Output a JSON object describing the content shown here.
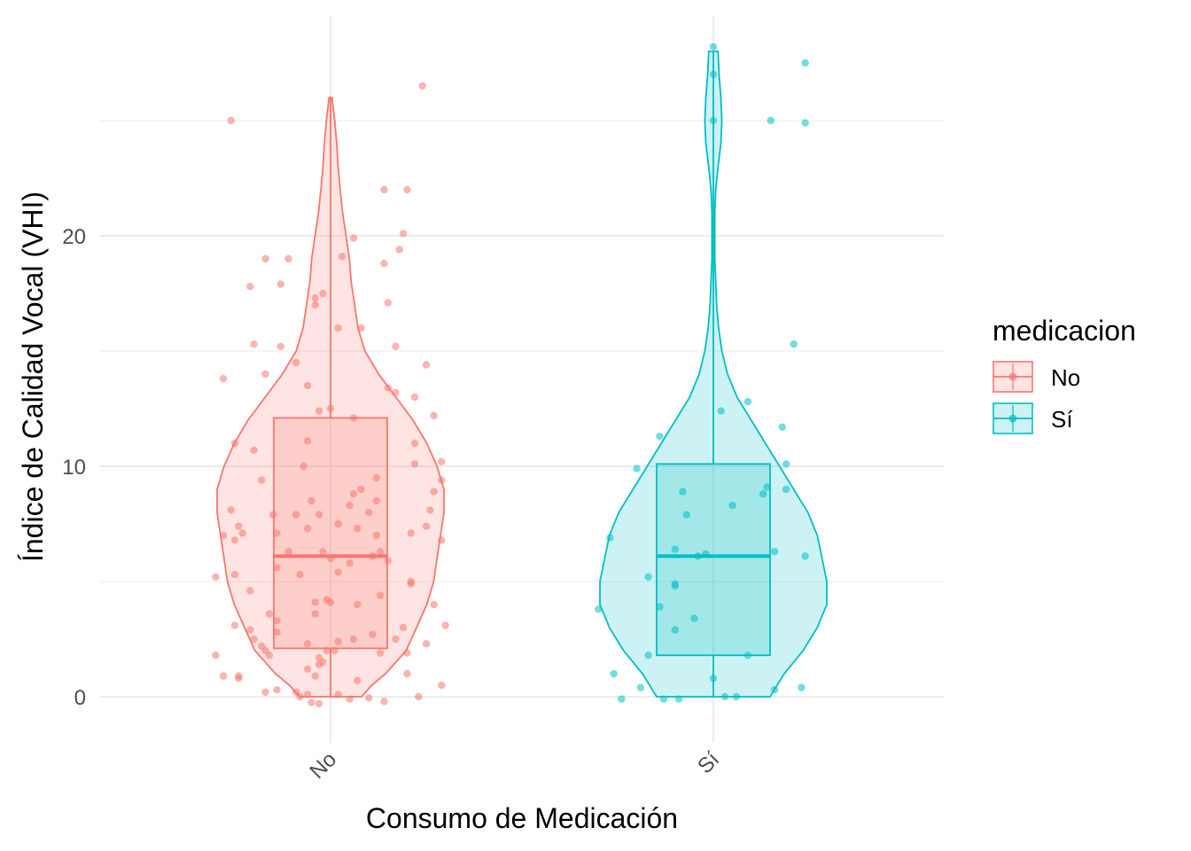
{
  "chart_data": {
    "type": "violin+box+jitter",
    "xlabel": "Consumo de Medicación",
    "ylabel": "Índice de Calidad Vocal (VHI)",
    "ylim": [
      -1.9,
      29.2
    ],
    "yticks": [
      0,
      10,
      20
    ],
    "minor_yticks": [
      5,
      15,
      25
    ],
    "grid": true,
    "legend": {
      "title": "medicacion",
      "position": "right"
    },
    "categories": [
      "No",
      "Sí"
    ],
    "series": [
      {
        "name": "No",
        "color": "#F8766D",
        "box": {
          "q1": 2.1,
          "median": 6.1,
          "q3": 12.1,
          "whisker_low": 0,
          "whisker_high": 26
        },
        "violin_profile": [
          [
            0,
            0.09
          ],
          [
            0.5,
            0.12
          ],
          [
            1,
            0.16
          ],
          [
            2,
            0.22
          ],
          [
            3,
            0.25
          ],
          [
            4,
            0.28
          ],
          [
            5,
            0.3
          ],
          [
            6,
            0.31
          ],
          [
            7,
            0.32
          ],
          [
            8,
            0.33
          ],
          [
            9,
            0.33
          ],
          [
            10,
            0.31
          ],
          [
            11,
            0.28
          ],
          [
            12,
            0.24
          ],
          [
            13,
            0.19
          ],
          [
            14,
            0.14
          ],
          [
            15,
            0.1
          ],
          [
            16,
            0.08
          ],
          [
            17,
            0.07
          ],
          [
            18,
            0.06
          ],
          [
            19,
            0.055
          ],
          [
            20,
            0.045
          ],
          [
            21,
            0.035
          ],
          [
            22,
            0.028
          ],
          [
            23,
            0.022
          ],
          [
            24,
            0.018
          ],
          [
            25,
            0.012
          ],
          [
            26,
            0.004
          ]
        ],
        "points": [
          [
            -0.26,
            25.0
          ],
          [
            0.24,
            26.5
          ],
          [
            0.14,
            22.0
          ],
          [
            0.2,
            22.0
          ],
          [
            0.06,
            19.9
          ],
          [
            0.19,
            20.1
          ],
          [
            0.18,
            19.4
          ],
          [
            -0.17,
            19.0
          ],
          [
            -0.11,
            19.0
          ],
          [
            0.03,
            19.1
          ],
          [
            0.14,
            18.8
          ],
          [
            -0.13,
            17.9
          ],
          [
            -0.02,
            17.5
          ],
          [
            -0.04,
            17.3
          ],
          [
            0.15,
            17.1
          ],
          [
            -0.21,
            17.8
          ],
          [
            -0.04,
            17.0
          ],
          [
            0.02,
            16.0
          ],
          [
            0.08,
            16.0
          ],
          [
            -0.2,
            15.3
          ],
          [
            -0.13,
            15.2
          ],
          [
            0.17,
            15.2
          ],
          [
            -0.09,
            14.5
          ],
          [
            0.25,
            14.4
          ],
          [
            -0.17,
            14.0
          ],
          [
            -0.06,
            13.5
          ],
          [
            -0.28,
            13.8
          ],
          [
            0.15,
            13.4
          ],
          [
            0.17,
            13.2
          ],
          [
            0.22,
            13.0
          ],
          [
            0.27,
            12.2
          ],
          [
            -0.03,
            12.4
          ],
          [
            0.0,
            12.5
          ],
          [
            0.06,
            12.1
          ],
          [
            -0.06,
            11.1
          ],
          [
            0.22,
            11.0
          ],
          [
            -0.25,
            11.0
          ],
          [
            -0.2,
            10.7
          ],
          [
            0.29,
            10.2
          ],
          [
            0.22,
            10.1
          ],
          [
            -0.07,
            10.0
          ],
          [
            0.12,
            9.5
          ],
          [
            -0.18,
            9.4
          ],
          [
            0.29,
            9.4
          ],
          [
            0.08,
            9.0
          ],
          [
            0.06,
            8.8
          ],
          [
            0.27,
            8.9
          ],
          [
            -0.05,
            8.5
          ],
          [
            0.12,
            8.5
          ],
          [
            -0.26,
            8.1
          ],
          [
            0.05,
            8.3
          ],
          [
            0.1,
            8.0
          ],
          [
            -0.15,
            7.9
          ],
          [
            0.26,
            8.1
          ],
          [
            -0.09,
            7.9
          ],
          [
            -0.03,
            7.9
          ],
          [
            0.25,
            7.4
          ],
          [
            -0.24,
            7.4
          ],
          [
            0.07,
            7.3
          ],
          [
            -0.14,
            7.1
          ],
          [
            0.02,
            7.5
          ],
          [
            -0.06,
            7.3
          ],
          [
            -0.23,
            7.1
          ],
          [
            0.12,
            7.0
          ],
          [
            0.21,
            7.1
          ],
          [
            0.29,
            6.8
          ],
          [
            -0.28,
            7.0
          ],
          [
            -0.25,
            6.8
          ],
          [
            0.13,
            6.3
          ],
          [
            -0.02,
            6.3
          ],
          [
            0.11,
            6.1
          ],
          [
            -0.11,
            6.3
          ],
          [
            0.05,
            5.8
          ],
          [
            0.15,
            5.9
          ],
          [
            0.0,
            6.0
          ],
          [
            -0.14,
            5.6
          ],
          [
            -0.08,
            5.3
          ],
          [
            0.02,
            5.4
          ],
          [
            0.21,
            5.0
          ],
          [
            -0.3,
            5.2
          ],
          [
            -0.25,
            5.3
          ],
          [
            0.21,
            4.9
          ],
          [
            -0.21,
            4.6
          ],
          [
            0.13,
            4.4
          ],
          [
            -0.01,
            4.2
          ],
          [
            -0.04,
            4.1
          ],
          [
            0.27,
            4.0
          ],
          [
            0.0,
            4.1
          ],
          [
            -0.04,
            3.6
          ],
          [
            -0.16,
            3.6
          ],
          [
            0.07,
            4.0
          ],
          [
            -0.14,
            3.3
          ],
          [
            0.3,
            3.1
          ],
          [
            -0.25,
            3.1
          ],
          [
            0.19,
            3.0
          ],
          [
            -0.21,
            2.9
          ],
          [
            0.11,
            2.7
          ],
          [
            -0.14,
            2.8
          ],
          [
            0.06,
            2.5
          ],
          [
            -0.2,
            2.5
          ],
          [
            0.17,
            2.5
          ],
          [
            0.02,
            2.4
          ],
          [
            -0.06,
            2.3
          ],
          [
            0.25,
            2.3
          ],
          [
            -0.18,
            2.2
          ],
          [
            -0.17,
            2.0
          ],
          [
            0.01,
            2.0
          ],
          [
            -0.01,
            2.0
          ],
          [
            0.13,
            1.9
          ],
          [
            -0.16,
            1.8
          ],
          [
            0.2,
            1.9
          ],
          [
            -0.03,
            1.7
          ],
          [
            -0.3,
            1.8
          ],
          [
            -0.03,
            1.4
          ],
          [
            -0.06,
            1.2
          ],
          [
            -0.02,
            1.5
          ],
          [
            0.2,
            1.0
          ],
          [
            -0.24,
            0.9
          ],
          [
            -0.28,
            0.9
          ],
          [
            -0.24,
            0.8
          ],
          [
            0.29,
            0.5
          ],
          [
            -0.04,
            0.9
          ],
          [
            0.07,
            0.7
          ],
          [
            -0.17,
            0.2
          ],
          [
            0.02,
            0.1
          ],
          [
            -0.14,
            0.3
          ],
          [
            -0.09,
            0.2
          ],
          [
            0.23,
            0.0
          ],
          [
            0.1,
            -0.05
          ],
          [
            0.05,
            -0.1
          ],
          [
            -0.08,
            0.0
          ],
          [
            -0.05,
            -0.25
          ],
          [
            0.14,
            -0.2
          ],
          [
            -0.03,
            -0.3
          ],
          [
            -0.06,
            0.1
          ]
        ]
      },
      {
        "name": "Sí",
        "color": "#00BFC4",
        "box": {
          "q1": 1.8,
          "median": 6.1,
          "q3": 10.1,
          "whisker_low": 0,
          "whisker_high": 28
        },
        "violin_profile": [
          [
            0,
            0.12
          ],
          [
            1,
            0.15
          ],
          [
            2,
            0.19
          ],
          [
            3,
            0.22
          ],
          [
            4,
            0.24
          ],
          [
            5,
            0.24
          ],
          [
            6,
            0.23
          ],
          [
            7,
            0.22
          ],
          [
            8,
            0.2
          ],
          [
            9,
            0.17
          ],
          [
            10,
            0.14
          ],
          [
            11,
            0.11
          ],
          [
            12,
            0.08
          ],
          [
            13,
            0.05
          ],
          [
            14,
            0.03
          ],
          [
            15,
            0.018
          ],
          [
            16,
            0.011
          ],
          [
            17,
            0.007
          ],
          [
            18,
            0.005
          ],
          [
            19,
            0.003
          ],
          [
            20,
            0.003
          ],
          [
            21,
            0.003
          ],
          [
            22,
            0.005
          ],
          [
            23,
            0.01
          ],
          [
            24,
            0.016
          ],
          [
            25,
            0.018
          ],
          [
            26,
            0.016
          ],
          [
            27,
            0.012
          ],
          [
            28,
            0.01
          ]
        ],
        "points": [
          [
            0.0,
            28.2
          ],
          [
            0.0,
            27.0
          ],
          [
            0.24,
            27.5
          ],
          [
            0.15,
            25.0
          ],
          [
            0.24,
            24.9
          ],
          [
            0.0,
            25.0
          ],
          [
            0.21,
            15.3
          ],
          [
            0.02,
            12.4
          ],
          [
            0.09,
            12.8
          ],
          [
            0.18,
            11.7
          ],
          [
            -0.14,
            11.3
          ],
          [
            0.19,
            10.1
          ],
          [
            -0.2,
            9.9
          ],
          [
            -0.08,
            8.9
          ],
          [
            0.13,
            8.8
          ],
          [
            0.19,
            9.0
          ],
          [
            0.14,
            9.1
          ],
          [
            0.05,
            8.3
          ],
          [
            -0.07,
            7.9
          ],
          [
            -0.27,
            6.9
          ],
          [
            -0.1,
            6.4
          ],
          [
            0.16,
            6.3
          ],
          [
            -0.02,
            6.2
          ],
          [
            -0.04,
            6.1
          ],
          [
            0.24,
            6.1
          ],
          [
            -0.17,
            5.2
          ],
          [
            -0.1,
            4.9
          ],
          [
            -0.1,
            4.8
          ],
          [
            -0.3,
            3.8
          ],
          [
            -0.14,
            3.9
          ],
          [
            -0.05,
            3.4
          ],
          [
            -0.1,
            2.9
          ],
          [
            0.09,
            1.8
          ],
          [
            -0.17,
            1.8
          ],
          [
            -0.26,
            1.0
          ],
          [
            0.0,
            0.8
          ],
          [
            -0.19,
            0.4
          ],
          [
            0.16,
            0.3
          ],
          [
            0.23,
            0.4
          ],
          [
            -0.24,
            -0.1
          ],
          [
            -0.13,
            -0.1
          ],
          [
            -0.09,
            -0.1
          ],
          [
            0.03,
            0.0
          ],
          [
            0.06,
            0.0
          ]
        ]
      }
    ]
  }
}
